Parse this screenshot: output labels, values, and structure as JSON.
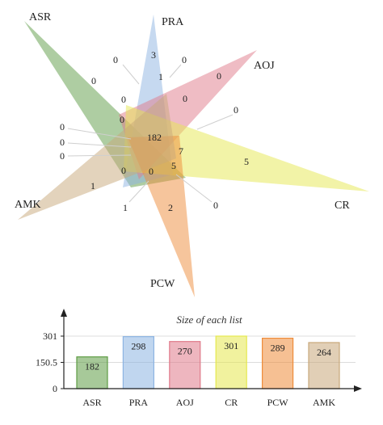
{
  "colors": {
    "ASR": "#5e9c45",
    "PRA": "#8db4e2",
    "AOJ": "#e07a8a",
    "CR": "#e5e84f",
    "PCW": "#ee8c3a",
    "AMK": "#c8a87a"
  },
  "venn": {
    "labels": {
      "ASR": "ASR",
      "PRA": "PRA",
      "AOJ": "AOJ",
      "CR": "CR",
      "PCW": "PCW",
      "AMK": "AMK"
    },
    "counts": [
      "0",
      "3",
      "0",
      "1",
      "0",
      "0",
      "0",
      "0",
      "0",
      "0",
      "0",
      "0",
      "182",
      "7",
      "5",
      "5",
      "0",
      "1",
      "0",
      "0",
      "1",
      "2",
      "0",
      "0"
    ]
  },
  "chart_data": {
    "type": "bar",
    "title": "Size of each list",
    "categories": [
      "ASR",
      "PRA",
      "AOJ",
      "CR",
      "PCW",
      "AMK"
    ],
    "values": [
      182,
      298,
      270,
      301,
      289,
      264
    ],
    "ylim": [
      0,
      301
    ],
    "yticks": [
      0,
      150.5,
      301
    ],
    "ytick_labels": [
      "0",
      "150.5",
      "301"
    ],
    "xlabel": "",
    "ylabel": ""
  }
}
